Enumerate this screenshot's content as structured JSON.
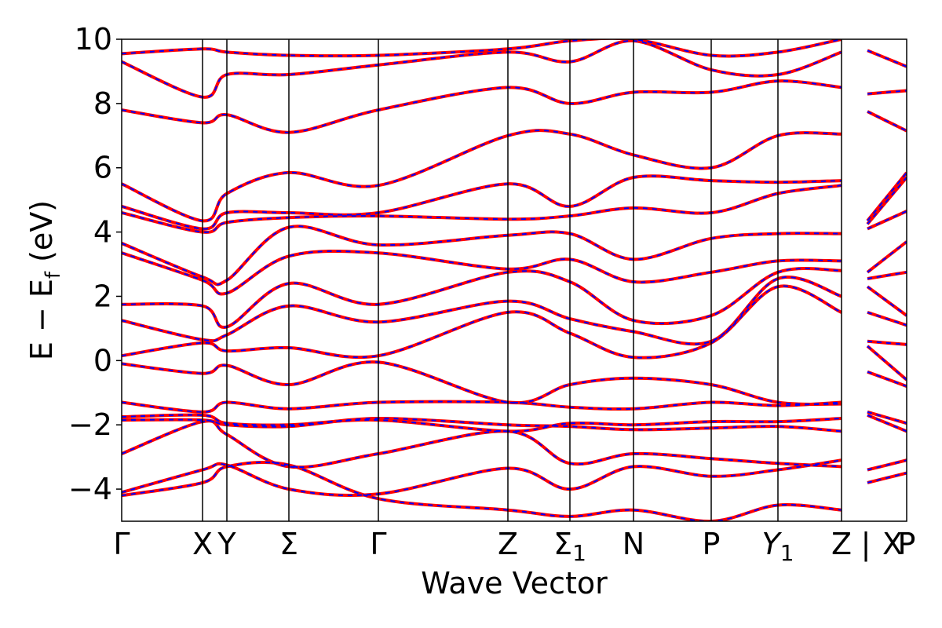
{
  "chart_data": {
    "type": "line",
    "title": "",
    "xlabel": "Wave Vector",
    "ylabel": "E − E",
    "ylabel_subscript": "f",
    "ylabel_unit": " (eV)",
    "ylim": [
      -5,
      10
    ],
    "yticks": [
      -4,
      -2,
      0,
      2,
      4,
      6,
      8,
      10
    ],
    "ytick_labels": [
      "−4",
      "−2",
      "0",
      "2",
      "4",
      "6",
      "8",
      "10"
    ],
    "grid": false,
    "legend": "none",
    "xlim": [
      0,
      10
    ],
    "kpath": [
      {
        "label": "Γ",
        "x": 0.0
      },
      {
        "label": "X",
        "x": 1.03
      },
      {
        "label": "Y",
        "x": 1.34
      },
      {
        "label": "Σ",
        "x": 2.13
      },
      {
        "label": "Γ",
        "x": 3.27
      },
      {
        "label": "Z",
        "x": 4.92
      },
      {
        "label": "Σ",
        "sub": "1",
        "x": 5.71
      },
      {
        "label": "N",
        "x": 6.52
      },
      {
        "label": "P",
        "x": 7.51
      },
      {
        "label": "Y",
        "sub": "1",
        "italic": true,
        "x": 8.36
      },
      {
        "label": "Z",
        "x": 9.17
      },
      {
        "label": "|",
        "x": 9.5
      },
      {
        "label": "X",
        "x": 9.5
      },
      {
        "label": "P",
        "x": 10.0
      }
    ],
    "separators": [
      1.03,
      1.34,
      2.13,
      3.27,
      4.92,
      5.71,
      6.52,
      7.51,
      8.36,
      9.17
    ],
    "series": [
      {
        "color": "#ff0000",
        "style": "solid",
        "bands": [
          [
            [
              0,
              -4.2
            ],
            [
              1.03,
              -3.8
            ],
            [
              1.34,
              -3.3
            ],
            [
              2.13,
              -3.25
            ],
            [
              3.27,
              -4.3
            ],
            [
              4.92,
              -4.65
            ],
            [
              5.71,
              -4.85
            ],
            [
              6.52,
              -4.65
            ],
            [
              7.51,
              -5.0
            ],
            [
              8.36,
              -4.5
            ],
            [
              9.17,
              -4.65
            ]
          ],
          [
            [
              0,
              -4.1
            ],
            [
              1.03,
              -3.4
            ],
            [
              1.34,
              -3.25
            ],
            [
              2.13,
              -4.0
            ],
            [
              3.27,
              -4.15
            ],
            [
              4.92,
              -3.35
            ],
            [
              5.71,
              -4.0
            ],
            [
              6.52,
              -3.3
            ],
            [
              7.51,
              -3.6
            ],
            [
              8.36,
              -3.4
            ],
            [
              9.17,
              -3.1
            ]
          ],
          [
            [
              0,
              -2.9
            ],
            [
              1.03,
              -1.9
            ],
            [
              1.34,
              -2.3
            ],
            [
              2.13,
              -3.3
            ],
            [
              3.27,
              -2.9
            ],
            [
              4.92,
              -2.2
            ],
            [
              5.71,
              -3.2
            ],
            [
              6.52,
              -2.9
            ],
            [
              7.51,
              -3.05
            ],
            [
              8.36,
              -3.2
            ],
            [
              9.17,
              -3.3
            ]
          ],
          [
            [
              0,
              -1.85
            ],
            [
              1.03,
              -1.85
            ],
            [
              1.34,
              -2.0
            ],
            [
              2.13,
              -2.05
            ],
            [
              3.27,
              -1.8
            ],
            [
              4.92,
              -2.0
            ],
            [
              5.71,
              -2.05
            ],
            [
              6.52,
              -2.15
            ],
            [
              7.51,
              -2.1
            ],
            [
              8.36,
              -2.05
            ],
            [
              9.17,
              -2.2
            ]
          ],
          [
            [
              0,
              -1.75
            ],
            [
              1.03,
              -1.7
            ],
            [
              1.34,
              -1.95
            ],
            [
              2.13,
              -2.0
            ],
            [
              3.27,
              -1.85
            ],
            [
              4.92,
              -2.2
            ],
            [
              5.71,
              -1.95
            ],
            [
              6.52,
              -2.0
            ],
            [
              7.51,
              -1.9
            ],
            [
              8.36,
              -1.9
            ],
            [
              9.17,
              -1.8
            ]
          ],
          [
            [
              0,
              -1.3
            ],
            [
              1.03,
              -1.6
            ],
            [
              1.34,
              -1.3
            ],
            [
              2.13,
              -1.5
            ],
            [
              3.27,
              -1.3
            ],
            [
              4.92,
              -1.3
            ],
            [
              5.71,
              -1.45
            ],
            [
              6.52,
              -1.5
            ],
            [
              7.51,
              -1.3
            ],
            [
              8.36,
              -1.4
            ],
            [
              9.17,
              -1.3
            ]
          ],
          [
            [
              0,
              -0.1
            ],
            [
              1.03,
              -0.4
            ],
            [
              1.34,
              -0.15
            ],
            [
              2.13,
              -0.75
            ],
            [
              3.27,
              -0.05
            ],
            [
              4.92,
              -1.3
            ],
            [
              5.71,
              -0.75
            ],
            [
              6.52,
              -0.55
            ],
            [
              7.51,
              -0.75
            ],
            [
              8.36,
              -1.3
            ],
            [
              9.17,
              -1.35
            ]
          ],
          [
            [
              0,
              0.15
            ],
            [
              1.03,
              0.55
            ],
            [
              1.34,
              0.3
            ],
            [
              2.13,
              0.4
            ],
            [
              3.27,
              0.15
            ],
            [
              4.92,
              1.5
            ],
            [
              5.71,
              0.85
            ],
            [
              6.52,
              0.1
            ],
            [
              7.51,
              0.55
            ],
            [
              8.36,
              2.3
            ],
            [
              9.17,
              1.5
            ]
          ],
          [
            [
              0,
              1.25
            ],
            [
              1.03,
              0.65
            ],
            [
              1.34,
              0.8
            ],
            [
              2.13,
              1.7
            ],
            [
              3.27,
              1.2
            ],
            [
              4.92,
              1.85
            ],
            [
              5.71,
              1.3
            ],
            [
              6.52,
              0.9
            ],
            [
              7.51,
              0.6
            ],
            [
              8.36,
              2.55
            ],
            [
              9.17,
              2.0
            ]
          ],
          [
            [
              0,
              1.75
            ],
            [
              1.03,
              1.7
            ],
            [
              1.34,
              1.05
            ],
            [
              2.13,
              2.4
            ],
            [
              3.27,
              1.75
            ],
            [
              4.92,
              2.75
            ],
            [
              5.71,
              2.45
            ],
            [
              6.52,
              1.25
            ],
            [
              7.51,
              1.4
            ],
            [
              8.36,
              2.75
            ],
            [
              9.17,
              2.8
            ]
          ],
          [
            [
              0,
              3.35
            ],
            [
              1.03,
              2.5
            ],
            [
              1.34,
              2.1
            ],
            [
              2.13,
              3.25
            ],
            [
              3.27,
              3.35
            ],
            [
              4.92,
              2.85
            ],
            [
              5.71,
              3.15
            ],
            [
              6.52,
              2.45
            ],
            [
              7.51,
              2.75
            ],
            [
              8.36,
              3.1
            ],
            [
              9.17,
              3.1
            ]
          ],
          [
            [
              0,
              3.65
            ],
            [
              1.03,
              2.6
            ],
            [
              1.34,
              2.5
            ],
            [
              2.13,
              4.15
            ],
            [
              3.27,
              3.6
            ],
            [
              4.92,
              3.9
            ],
            [
              5.71,
              3.95
            ],
            [
              6.52,
              3.15
            ],
            [
              7.51,
              3.8
            ],
            [
              8.36,
              3.95
            ],
            [
              9.17,
              3.95
            ]
          ],
          [
            [
              0,
              4.6
            ],
            [
              1.03,
              4.0
            ],
            [
              1.34,
              4.3
            ],
            [
              2.13,
              4.45
            ],
            [
              3.27,
              4.5
            ],
            [
              4.92,
              4.4
            ],
            [
              5.71,
              4.5
            ],
            [
              6.52,
              4.75
            ],
            [
              7.51,
              4.6
            ],
            [
              8.36,
              5.2
            ],
            [
              9.17,
              5.45
            ]
          ],
          [
            [
              0,
              4.8
            ],
            [
              1.03,
              4.1
            ],
            [
              1.34,
              4.6
            ],
            [
              2.13,
              4.6
            ],
            [
              3.27,
              4.6
            ],
            [
              4.92,
              5.5
            ],
            [
              5.71,
              4.8
            ],
            [
              6.52,
              5.7
            ],
            [
              7.51,
              5.6
            ],
            [
              8.36,
              5.55
            ],
            [
              9.17,
              5.6
            ]
          ],
          [
            [
              0,
              5.5
            ],
            [
              1.03,
              4.35
            ],
            [
              1.34,
              5.2
            ],
            [
              2.13,
              5.85
            ],
            [
              3.27,
              5.45
            ],
            [
              4.92,
              7.0
            ],
            [
              5.71,
              7.05
            ],
            [
              6.52,
              6.4
            ],
            [
              7.51,
              6.0
            ],
            [
              8.36,
              7.0
            ],
            [
              9.17,
              7.05
            ]
          ],
          [
            [
              0,
              7.8
            ],
            [
              1.03,
              7.4
            ],
            [
              1.34,
              7.65
            ],
            [
              2.13,
              7.1
            ],
            [
              3.27,
              7.8
            ],
            [
              4.92,
              8.5
            ],
            [
              5.71,
              8.0
            ],
            [
              6.52,
              8.35
            ],
            [
              7.51,
              8.35
            ],
            [
              8.36,
              8.7
            ],
            [
              9.17,
              8.5
            ]
          ],
          [
            [
              0,
              9.3
            ],
            [
              1.03,
              8.2
            ],
            [
              1.34,
              8.9
            ],
            [
              2.13,
              8.9
            ],
            [
              3.27,
              9.2
            ],
            [
              4.92,
              9.6
            ],
            [
              5.71,
              9.3
            ],
            [
              6.52,
              9.95
            ],
            [
              7.51,
              9.05
            ],
            [
              8.36,
              8.9
            ],
            [
              9.17,
              9.6
            ]
          ],
          [
            [
              0,
              9.55
            ],
            [
              1.03,
              9.7
            ],
            [
              1.34,
              9.6
            ],
            [
              2.13,
              9.5
            ],
            [
              3.27,
              9.5
            ],
            [
              4.92,
              9.7
            ],
            [
              5.71,
              9.95
            ],
            [
              6.52,
              10.0
            ],
            [
              7.51,
              9.5
            ],
            [
              8.36,
              9.6
            ],
            [
              9.17,
              10.0
            ]
          ],
          [
            [
              9.5,
              -3.8
            ],
            [
              10.0,
              -3.5
            ]
          ],
          [
            [
              9.5,
              -3.4
            ],
            [
              10.0,
              -3.1
            ]
          ],
          [
            [
              9.5,
              -1.7
            ],
            [
              10.0,
              -2.2
            ]
          ],
          [
            [
              9.5,
              -1.6
            ],
            [
              10.0,
              -1.95
            ]
          ],
          [
            [
              9.5,
              -0.35
            ],
            [
              10.0,
              -0.8
            ]
          ],
          [
            [
              9.5,
              0.45
            ],
            [
              10.0,
              -0.6
            ]
          ],
          [
            [
              9.5,
              0.6
            ],
            [
              10.0,
              0.5
            ]
          ],
          [
            [
              9.5,
              1.5
            ],
            [
              10.0,
              1.1
            ]
          ],
          [
            [
              9.5,
              2.3
            ],
            [
              10.0,
              1.4
            ]
          ],
          [
            [
              9.5,
              2.55
            ],
            [
              10.0,
              2.75
            ]
          ],
          [
            [
              9.5,
              2.75
            ],
            [
              10.0,
              3.7
            ]
          ],
          [
            [
              9.5,
              4.1
            ],
            [
              10.0,
              4.65
            ]
          ],
          [
            [
              9.5,
              4.25
            ],
            [
              10.0,
              5.7
            ]
          ],
          [
            [
              9.5,
              4.35
            ],
            [
              10.0,
              5.85
            ]
          ],
          [
            [
              9.5,
              7.75
            ],
            [
              10.0,
              7.15
            ]
          ],
          [
            [
              9.5,
              8.3
            ],
            [
              10.0,
              8.4
            ]
          ],
          [
            [
              9.5,
              9.65
            ],
            [
              10.0,
              9.15
            ]
          ]
        ]
      },
      {
        "color": "#0000ff",
        "style": "dashed",
        "same_as": 0
      }
    ]
  },
  "colors": {
    "primary": "#ff0000",
    "overlay": "#0000ff",
    "axis": "#000000"
  }
}
